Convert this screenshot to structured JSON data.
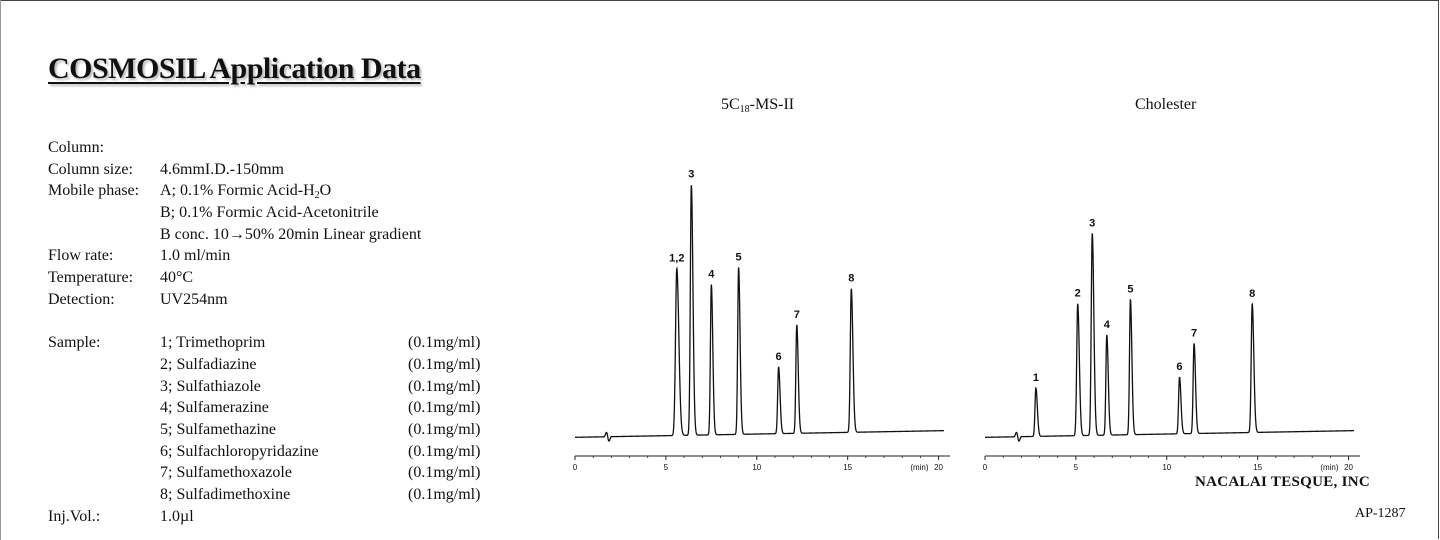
{
  "header": {
    "title": "COSMOSIL Application Data"
  },
  "conditions": [
    {
      "label": "Column:",
      "value": "",
      "sub": "",
      "tail": ""
    },
    {
      "label": "Column size:",
      "value": "4.6mmI.D.-150mm",
      "sub": "",
      "tail": ""
    },
    {
      "label": "Mobile phase:",
      "value": "A; 0.1% Formic Acid-H",
      "sub": "2",
      "tail": "O"
    },
    {
      "label": "",
      "value": "B; 0.1% Formic Acid-Acetonitrile",
      "sub": "",
      "tail": ""
    },
    {
      "label": "",
      "value": "B conc. 10→50% 20min Linear gradient",
      "sub": "",
      "tail": ""
    },
    {
      "label": "Flow rate:",
      "value": "1.0 ml/min",
      "sub": "",
      "tail": ""
    },
    {
      "label": "Temperature:",
      "value": "40°C",
      "sub": "",
      "tail": ""
    },
    {
      "label": "Detection:",
      "value": "UV254nm",
      "sub": "",
      "tail": ""
    }
  ],
  "sample": {
    "label": "Sample:",
    "items": [
      {
        "name": "1; Trimethoprim",
        "conc": "(0.1mg/ml)"
      },
      {
        "name": "2; Sulfadiazine",
        "conc": "(0.1mg/ml)"
      },
      {
        "name": "3; Sulfathiazole",
        "conc": "(0.1mg/ml)"
      },
      {
        "name": "4; Sulfamerazine",
        "conc": "(0.1mg/ml)"
      },
      {
        "name": "5; Sulfamethazine",
        "conc": "(0.1mg/ml)"
      },
      {
        "name": "6; Sulfachloropyridazine",
        "conc": "(0.1mg/ml)"
      },
      {
        "name": "7; Sulfamethoxazole",
        "conc": "(0.1mg/ml)"
      },
      {
        "name": "8; Sulfadimethoxine",
        "conc": "(0.1mg/ml)"
      }
    ]
  },
  "injection": {
    "label": "Inj.Vol.:",
    "value": "1.0µl"
  },
  "chart_data": [
    {
      "type": "line",
      "title": "5C18-MS-II",
      "title_parts": {
        "pre": "5C",
        "sub": "18",
        "post": "-MS-II"
      },
      "x_unit_label": "(min)",
      "xlim": [
        0,
        20.3
      ],
      "x_ticks": [
        0,
        5,
        10,
        15,
        20
      ],
      "baseline_start": 0.04,
      "baseline_end": 0.08,
      "injection_time": 1.8,
      "peaks": [
        {
          "label": "1,2",
          "time": 5.6,
          "height": 1.0,
          "width": 0.07
        },
        {
          "label": "3",
          "time": 6.4,
          "height": 1.5,
          "width": 0.055
        },
        {
          "label": "4",
          "time": 7.5,
          "height": 0.9,
          "width": 0.05
        },
        {
          "label": "5",
          "time": 9.0,
          "height": 1.0,
          "width": 0.05
        },
        {
          "label": "6",
          "time": 11.2,
          "height": 0.4,
          "width": 0.05
        },
        {
          "label": "7",
          "time": 12.2,
          "height": 0.65,
          "width": 0.05
        },
        {
          "label": "8",
          "time": 15.2,
          "height": 0.86,
          "width": 0.055
        }
      ]
    },
    {
      "type": "line",
      "title": "Cholester",
      "x_unit_label": "(min)",
      "xlim": [
        0,
        20.3
      ],
      "x_ticks": [
        0,
        5,
        10,
        15,
        20
      ],
      "baseline_start": 0.04,
      "baseline_end": 0.08,
      "injection_time": 1.8,
      "peaks": [
        {
          "label": "1",
          "time": 2.8,
          "height": 0.29,
          "width": 0.05
        },
        {
          "label": "2",
          "time": 5.1,
          "height": 0.79,
          "width": 0.055
        },
        {
          "label": "3",
          "time": 5.9,
          "height": 1.21,
          "width": 0.055
        },
        {
          "label": "4",
          "time": 6.7,
          "height": 0.6,
          "width": 0.05
        },
        {
          "label": "5",
          "time": 8.0,
          "height": 0.81,
          "width": 0.05
        },
        {
          "label": "6",
          "time": 10.7,
          "height": 0.34,
          "width": 0.05
        },
        {
          "label": "7",
          "time": 11.5,
          "height": 0.54,
          "width": 0.05
        },
        {
          "label": "8",
          "time": 14.7,
          "height": 0.77,
          "width": 0.055
        }
      ]
    }
  ],
  "footer": {
    "company": "NACALAI TESQUE, INC",
    "code": "AP-1287"
  }
}
